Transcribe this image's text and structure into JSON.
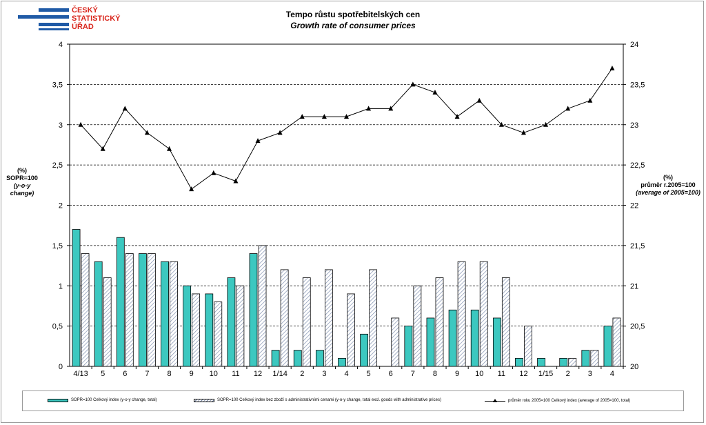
{
  "logo": {
    "line1": "ČESKÝ",
    "line2": "STATISTICKÝ",
    "line3": "ÚŘAD"
  },
  "title": "Tempo růstu spotřebitelských cen",
  "subtitle": "Growth rate of consumer prices",
  "left_axis_label": {
    "line1": "(%)",
    "line2": "SOPR=100",
    "line3": "(y-o-y change)"
  },
  "right_axis_label": {
    "line1": "(%)",
    "line2": "průměr r.2005=100",
    "line3": "(average of 2005=100)"
  },
  "legend": {
    "bar1": "SOPR=100  Celkový index  (y-o-y change, total)",
    "bar2": "SOPR=100  Celkový index  bez zboží  s administrativními  cenami  (y-o-y change, total  excl. goods  with administrative  prices)",
    "line": "průměr roku 2005=100  Celkový index  (average of 2005=100,  total)"
  },
  "colors": {
    "bar_total": "#3cc8c0",
    "bar_excl": "#ffffff",
    "hatch": "#8090b0",
    "line": "#000000"
  },
  "chart_data": {
    "type": "bar",
    "categories": [
      "4/13",
      "5",
      "6",
      "7",
      "8",
      "9",
      "10",
      "11",
      "12",
      "1/14",
      "2",
      "3",
      "4",
      "5",
      "6",
      "7",
      "8",
      "9",
      "10",
      "11",
      "12",
      "1/15",
      "2",
      "3",
      "4"
    ],
    "series": [
      {
        "name": "SOPR=100  Celkový index  (y-o-y change, total)",
        "type": "bar",
        "axis": "left",
        "values": [
          1.7,
          1.3,
          1.6,
          1.4,
          1.3,
          1.0,
          0.9,
          1.1,
          1.4,
          0.2,
          0.2,
          0.2,
          0.1,
          0.4,
          0.0,
          0.5,
          0.6,
          0.7,
          0.7,
          0.6,
          0.1,
          0.1,
          0.1,
          0.2,
          0.5
        ]
      },
      {
        "name": "SOPR=100  Celkový index  bez zboží  s administrativními  cenami  (y-o-y change, total  excl. goods  with administrative  prices)",
        "type": "bar",
        "axis": "left",
        "values": [
          1.4,
          1.1,
          1.4,
          1.4,
          1.3,
          0.9,
          0.8,
          1.0,
          1.5,
          1.2,
          1.1,
          1.2,
          0.9,
          1.2,
          0.6,
          1.0,
          1.1,
          1.3,
          1.3,
          1.1,
          0.5,
          null,
          0.1,
          0.2,
          0.6
        ]
      },
      {
        "name": "průměr roku 2005=100  Celkový index  (average of 2005=100,  total)",
        "type": "line",
        "axis": "right",
        "values": [
          23.0,
          22.7,
          23.2,
          22.9,
          22.7,
          22.2,
          22.4,
          22.3,
          22.8,
          22.9,
          23.1,
          23.1,
          23.1,
          23.2,
          23.2,
          23.5,
          23.4,
          23.1,
          23.3,
          23.0,
          22.9,
          23.0,
          23.2,
          23.3,
          23.7
        ]
      }
    ],
    "yleft": {
      "lim": [
        0,
        4
      ],
      "ticks": [
        "0",
        "0,5",
        "1",
        "1,5",
        "2",
        "2,5",
        "3",
        "3,5",
        "4"
      ]
    },
    "yright": {
      "lim": [
        20,
        24
      ],
      "ticks": [
        "20",
        "20,5",
        "21",
        "21,5",
        "22",
        "22,5",
        "23",
        "23,5",
        "24"
      ]
    },
    "grid": "horizontal dashed",
    "legend_position": "bottom"
  }
}
